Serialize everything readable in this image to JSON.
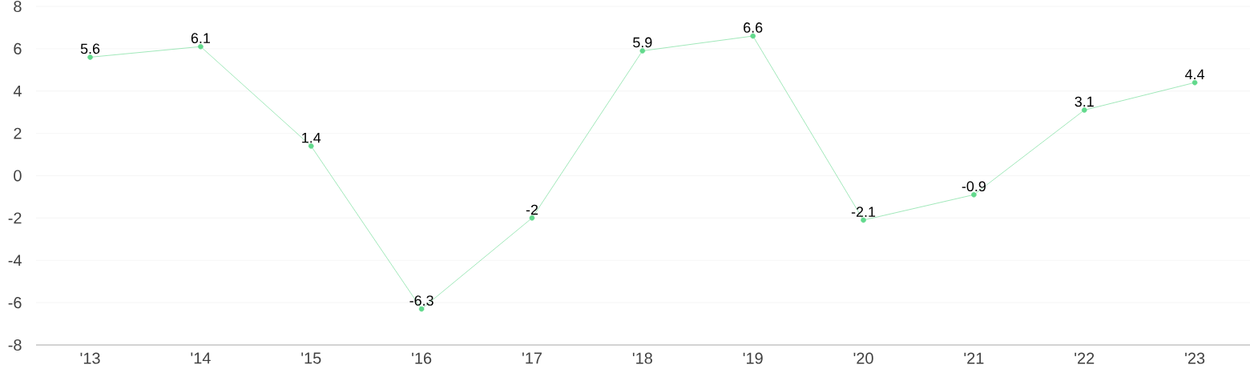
{
  "chart_data": {
    "type": "line",
    "categories": [
      "'13",
      "'14",
      "'15",
      "'16",
      "'17",
      "'18",
      "'19",
      "'20",
      "'21",
      "'22",
      "'23"
    ],
    "values": [
      5.6,
      6.1,
      1.4,
      -6.3,
      -2,
      5.9,
      6.6,
      -2.1,
      -0.9,
      3.1,
      4.4
    ],
    "color": "#62d98c",
    "ylim": [
      -8,
      8
    ],
    "yticks": [
      -8,
      -6,
      -4,
      -2,
      0,
      2,
      4,
      6,
      8
    ],
    "grid": "y",
    "data_labels": true,
    "marker": "circle",
    "line_style": "solid"
  }
}
